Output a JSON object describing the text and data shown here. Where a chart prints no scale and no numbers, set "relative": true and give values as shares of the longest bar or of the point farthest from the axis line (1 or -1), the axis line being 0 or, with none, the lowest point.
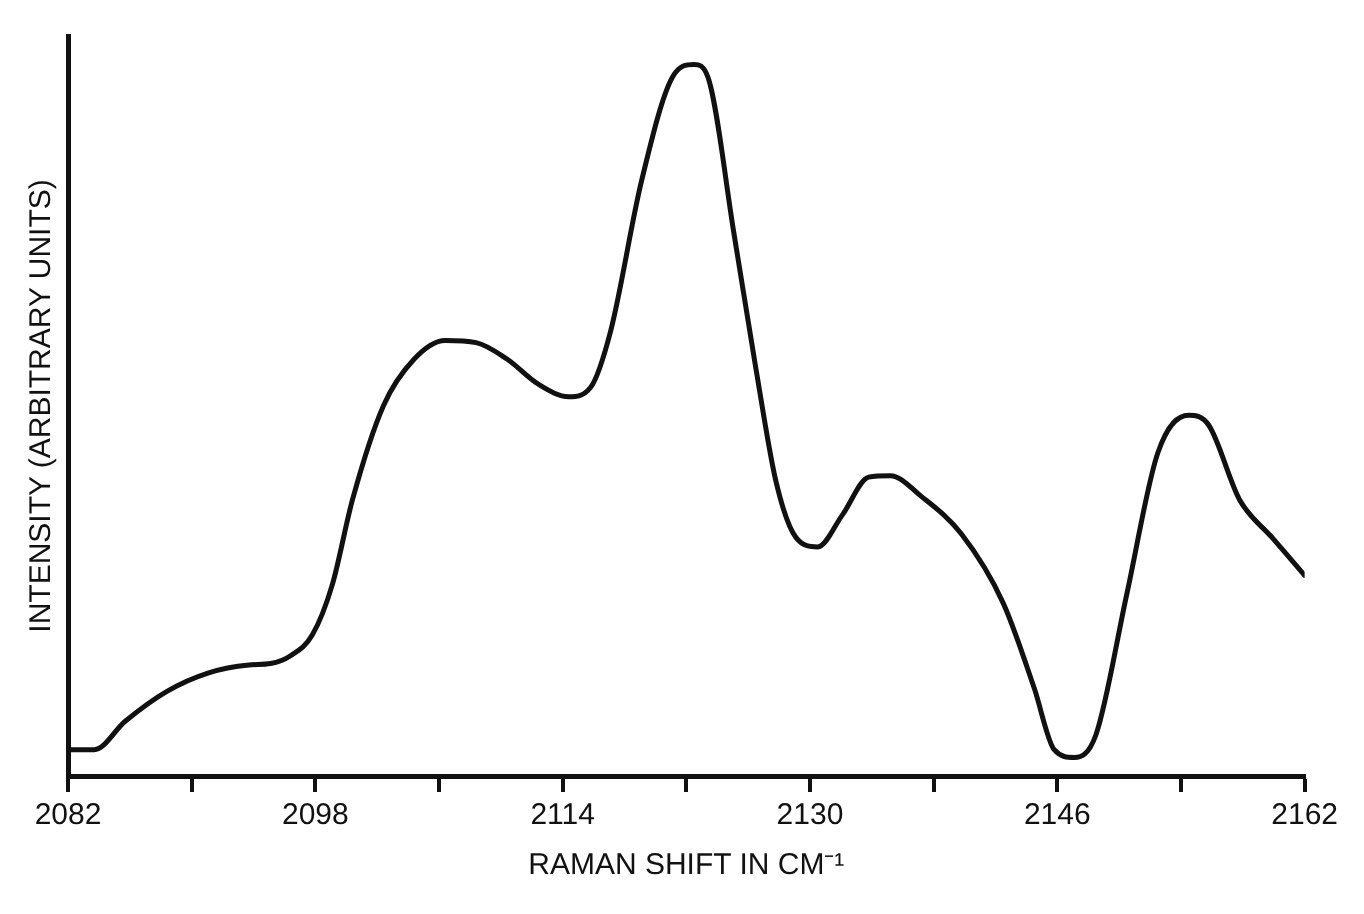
{
  "chart_data": {
    "type": "line",
    "relative": true,
    "xlabel": "RAMAN SHIFT IN CM⁻¹",
    "ylabel": "INTENSITY (ARBITRARY UNITS)",
    "grid": false,
    "legend": false,
    "marker": "none",
    "line_style": "solid",
    "xlim": [
      2082,
      2162
    ],
    "xticks": [
      2082,
      {
        "value": 2090,
        "label": null
      },
      2098,
      {
        "value": 2106,
        "label": null
      },
      2114,
      {
        "value": 2122,
        "label": null
      },
      2130,
      {
        "value": 2138,
        "label": null
      },
      2146,
      {
        "value": 2154,
        "label": null
      },
      2162
    ],
    "series": [
      {
        "color": "#111111",
        "x": [
          2082,
          2083.7,
          2085.7,
          2088.4,
          2091.1,
          2093.7,
          2095.1,
          2096.4,
          2097.8,
          2099.1,
          2100.4,
          2102.4,
          2104.4,
          2106.4,
          2108.4,
          2110.4,
          2112.4,
          2114.4,
          2115.8,
          2117.1,
          2119.1,
          2121.1,
          2122.5,
          2123.4,
          2125.1,
          2126.5,
          2127.8,
          2129.1,
          2130.5,
          2132.1,
          2133.8,
          2135.2,
          2137.2,
          2139.8,
          2142.5,
          2144.5,
          2145.8,
          2147.1,
          2148.5,
          2150.5,
          2152.5,
          2154.5,
          2155.8,
          2157.8,
          2159.9,
          2162
        ],
        "values": [
          0.037,
          0.037,
          0.077,
          0.119,
          0.145,
          0.156,
          0.158,
          0.169,
          0.198,
          0.269,
          0.388,
          0.52,
          0.586,
          0.612,
          0.609,
          0.586,
          0.551,
          0.533,
          0.546,
          0.625,
          0.836,
          0.982,
          1.0,
          0.982,
          0.76,
          0.573,
          0.414,
          0.335,
          0.322,
          0.367,
          0.42,
          0.422,
          0.393,
          0.34,
          0.243,
          0.124,
          0.037,
          0.026,
          0.058,
          0.256,
          0.454,
          0.507,
          0.493,
          0.388,
          0.335,
          0.282
        ]
      }
    ]
  }
}
